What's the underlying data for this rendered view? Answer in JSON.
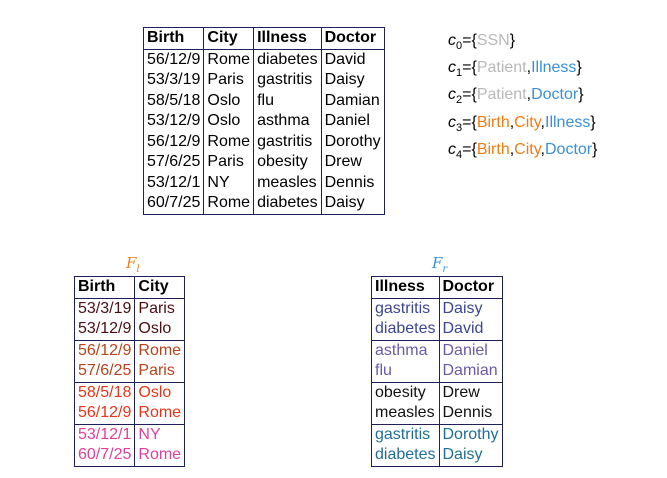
{
  "main_table": {
    "headers": [
      "Birth",
      "City",
      "Illness",
      "Doctor"
    ],
    "rows": [
      [
        "56/12/9",
        "Rome",
        "diabetes",
        "David"
      ],
      [
        "53/3/19",
        "Paris",
        "gastritis",
        "Daisy"
      ],
      [
        "58/5/18",
        "Oslo",
        "flu",
        "Damian"
      ],
      [
        "53/12/9",
        "Oslo",
        "asthma",
        "Daniel"
      ],
      [
        "56/12/9",
        "Rome",
        "gastritis",
        "Dorothy"
      ],
      [
        "57/6/25",
        "Paris",
        "obesity",
        "Drew"
      ],
      [
        "53/12/1",
        "NY",
        "measles",
        "Dennis"
      ],
      [
        "60/7/25",
        "Rome",
        "diabetes",
        "Daisy"
      ]
    ]
  },
  "constraints": [
    {
      "label": "c",
      "index": "0",
      "attrs": [
        {
          "name": "SSN",
          "color": "#b8b8b8"
        }
      ]
    },
    {
      "label": "c",
      "index": "1",
      "attrs": [
        {
          "name": "Patient",
          "color": "#b8b8b8"
        },
        {
          "name": "Illness",
          "color": "#3a8fd6"
        }
      ]
    },
    {
      "label": "c",
      "index": "2",
      "attrs": [
        {
          "name": "Patient",
          "color": "#b8b8b8"
        },
        {
          "name": "Doctor",
          "color": "#3a8fd6"
        }
      ]
    },
    {
      "label": "c",
      "index": "3",
      "attrs": [
        {
          "name": "Birth",
          "color": "#ef7d16"
        },
        {
          "name": "City",
          "color": "#ef7d16"
        },
        {
          "name": "Illness",
          "color": "#3a8fd6"
        }
      ]
    },
    {
      "label": "c",
      "index": "4",
      "attrs": [
        {
          "name": "Birth",
          "color": "#ef7d16"
        },
        {
          "name": "City",
          "color": "#ef7d16"
        },
        {
          "name": "Doctor",
          "color": "#3a8fd6"
        }
      ]
    }
  ],
  "fragment_left": {
    "label": "F",
    "subscript": "l",
    "label_color": "#ef7d16",
    "headers": [
      "Birth",
      "City"
    ],
    "groups": [
      {
        "color": "#4a0f14",
        "rows": [
          [
            "53/3/19",
            "Paris"
          ],
          [
            "53/12/9",
            "Oslo"
          ]
        ]
      },
      {
        "color": "#b8421c",
        "rows": [
          [
            "56/12/9",
            "Rome"
          ],
          [
            "57/6/25",
            "Paris"
          ]
        ]
      },
      {
        "color": "#e8341c",
        "rows": [
          [
            "58/5/18",
            "Oslo"
          ],
          [
            "56/12/9",
            "Rome"
          ]
        ]
      },
      {
        "color": "#e0409a",
        "rows": [
          [
            "53/12/1",
            "NY"
          ],
          [
            "60/7/25",
            "Rome"
          ]
        ]
      }
    ]
  },
  "fragment_right": {
    "label": "F",
    "subscript": "r",
    "label_color": "#3a8fd6",
    "headers": [
      "Illness",
      "Doctor"
    ],
    "groups": [
      {
        "color": "#3d4690",
        "rows": [
          [
            "gastritis",
            "Daisy"
          ],
          [
            "diabetes",
            "David"
          ]
        ]
      },
      {
        "color": "#6a5aa8",
        "rows": [
          [
            "asthma",
            "Daniel"
          ],
          [
            "flu",
            "Damian"
          ]
        ]
      },
      {
        "color": "#111111",
        "rows": [
          [
            "obesity",
            "Drew"
          ],
          [
            "measles",
            "Dennis"
          ]
        ]
      },
      {
        "color": "#1f6e9a",
        "rows": [
          [
            "gastritis",
            "Dorothy"
          ],
          [
            "diabetes",
            "Daisy"
          ]
        ]
      }
    ]
  }
}
